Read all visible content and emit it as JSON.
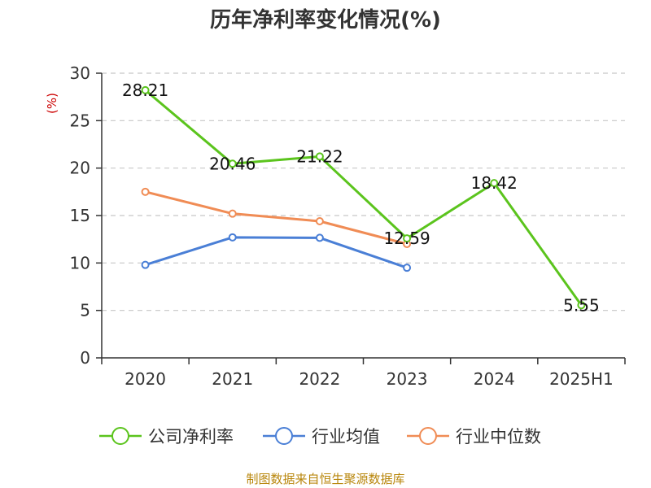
{
  "chart_data": {
    "type": "line",
    "title": "历年净利率变化情况(%)",
    "ylabel": "(%)",
    "xlabel": "",
    "categories": [
      "2020",
      "2021",
      "2022",
      "2023",
      "2024",
      "2025H1"
    ],
    "ylim": [
      0,
      30
    ],
    "yticks": [
      0,
      5,
      10,
      15,
      20,
      25,
      30
    ],
    "grid": "horizontal dashed",
    "legend_position": "bottom",
    "series": [
      {
        "name": "公司净利率",
        "color": "#5bc41d",
        "values": [
          28.21,
          20.46,
          21.22,
          12.59,
          18.42,
          5.55
        ],
        "labels": [
          "28.21",
          "20.46",
          "21.22",
          "12.59",
          "18.42",
          "5.55"
        ]
      },
      {
        "name": "行业均值",
        "color": "#4a7fd6",
        "values": [
          9.8,
          12.7,
          12.65,
          9.5,
          null,
          null
        ]
      },
      {
        "name": "行业中位数",
        "color": "#f08c55",
        "values": [
          17.5,
          15.2,
          14.4,
          12.0,
          null,
          null
        ]
      }
    ]
  },
  "footer": {
    "source": "制图数据来自恒生聚源数据库"
  }
}
